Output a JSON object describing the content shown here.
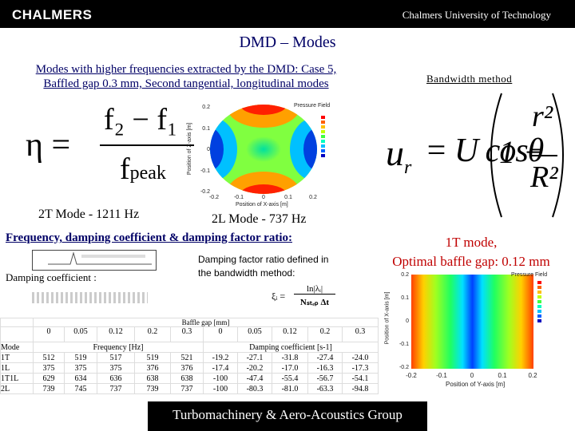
{
  "header": {
    "logo": "CHALMERS",
    "org": "Chalmers University of Technology"
  },
  "title": "DMD – Modes",
  "subtitle": [
    "Modes with higher frequencies extracted by the DMD: Case 5,",
    "Baffled gap 0.3 mm, Second tangential, longitudinal modes"
  ],
  "bandwidth_label": "Bandwidth method",
  "eta_formula": {
    "lhs": "η =",
    "numerator": "f₂ − f₁",
    "denominator": "f",
    "denominator_sub": "peak"
  },
  "top_plot": {
    "title": "Pressure Field",
    "ylabel": "Position of Z-axis [m]",
    "xlabel": "Position of X-axis [m]",
    "yticks": [
      "0.2",
      "0.1",
      "0",
      "-0.1",
      "-0.2"
    ],
    "xticks": [
      "-0.2",
      "-0.1",
      "0",
      "0.1",
      "0.2"
    ]
  },
  "velocity_formula": {
    "lhs": "u",
    "lhs_sub": "r",
    "eq": "= U cosθ",
    "one": "1 −",
    "num": "r²",
    "den": "R²"
  },
  "captions": [
    "2T Mode - 1211 Hz",
    "2L Mode - 737 Hz"
  ],
  "section_heading": "Frequency, damping coefficient & damping factor ratio:",
  "right_caption": [
    "1T mode,",
    "Optimal baffle gap: 0.12 mm"
  ],
  "damping_ratio_note": [
    "Damping factor ratio defined in",
    "the bandwidth method:"
  ],
  "damping_ratio_formula": {
    "lhs": "ξᵢ =",
    "num": "ln|λᵢ|",
    "den": "Nₛₜₑₚ Δt"
  },
  "damping_coef_label": "Damping coefficient :",
  "table": {
    "gap_label": "Baffle gap [mm]",
    "gaps": [
      "0",
      "0.05",
      "0.12",
      "0.2",
      "0.3",
      "0",
      "0.05",
      "0.12",
      "0.2",
      "0.3"
    ],
    "mode_label": "Mode",
    "freq_label": "Frequency [Hz]",
    "damp_label": "Damping coefficient [s-1]",
    "rows": [
      [
        "1T",
        "512",
        "519",
        "517",
        "519",
        "521",
        "-19.2",
        "-27.1",
        "-31.8",
        "-27.4",
        "-24.0"
      ],
      [
        "1L",
        "375",
        "375",
        "375",
        "376",
        "376",
        "-17.4",
        "-20.2",
        "-17.0",
        "-16.3",
        "-17.3"
      ],
      [
        "1T1L",
        "629",
        "634",
        "636",
        "638",
        "638",
        "-100",
        "-47.4",
        "-55.4",
        "-56.7",
        "-54.1"
      ],
      [
        "2L",
        "739",
        "745",
        "737",
        "739",
        "737",
        "-100",
        "-80.3",
        "-81.0",
        "-63.3",
        "-94.8"
      ]
    ]
  },
  "bottom_plot": {
    "title": "Pressure Field",
    "ylabel": "Position of X-axis [m]",
    "xlabel": "Position of Y-axis [m]",
    "yticks": [
      "0.2",
      "0.1",
      "0",
      "-0.1",
      "-0.2"
    ],
    "xticks": [
      "-0.2",
      "-0.1",
      "0",
      "0.1",
      "0.2"
    ]
  },
  "footer": "Turbomachinery & Aero-Acoustics Group"
}
